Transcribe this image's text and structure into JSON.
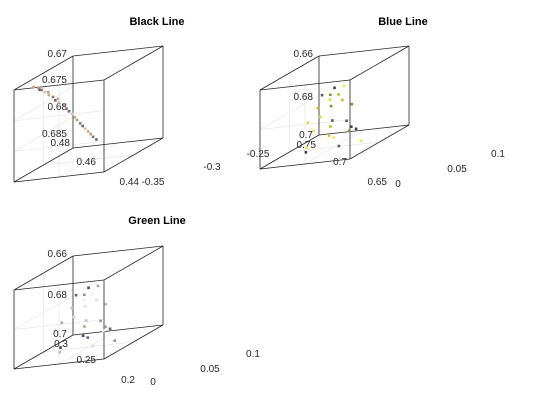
{
  "chart_data": [
    {
      "type": "scatter",
      "title": "Black Line",
      "xlabel": "",
      "ylabel": "",
      "zlabel": "",
      "xlim": [
        -0.35,
        -0.25
      ],
      "ylim": [
        0.44,
        0.48
      ],
      "zlim": [
        0.67,
        0.685
      ],
      "z_direction": "reverse",
      "grid": true,
      "tick_labels": {
        "x": [
          "-0.35",
          "-0.3",
          "-0.25"
        ],
        "y": [
          "0.44",
          "0.46",
          "0.48"
        ],
        "z": [
          "0.67",
          "0.675",
          "0.68",
          "0.685"
        ]
      },
      "marker_colors": [
        "#c9a88a",
        "#b89a82",
        "#8c7a74",
        "#6e6266",
        "#d9bfa5"
      ],
      "series": [
        {
          "name": "",
          "x": [
            -0.338,
            -0.336,
            -0.334,
            -0.333,
            -0.332,
            -0.331,
            -0.33,
            -0.328,
            -0.327,
            -0.325,
            -0.324,
            -0.322,
            -0.321,
            -0.32,
            -0.318,
            -0.317,
            -0.316,
            -0.314,
            -0.313,
            -0.312,
            -0.31,
            -0.309,
            -0.308,
            -0.306
          ],
          "y": [
            0.474,
            0.472,
            0.471,
            0.473,
            0.47,
            0.468,
            0.469,
            0.467,
            0.466,
            0.465,
            0.466,
            0.463,
            0.462,
            0.461,
            0.46,
            0.459,
            0.458,
            0.457,
            0.456,
            0.455,
            0.454,
            0.453,
            0.452,
            0.451
          ],
          "z": [
            0.6705,
            0.671,
            0.6715,
            0.6712,
            0.672,
            0.6728,
            0.6722,
            0.6733,
            0.674,
            0.6745,
            0.6738,
            0.6752,
            0.676,
            0.6766,
            0.6772,
            0.6779,
            0.6785,
            0.6792,
            0.6798,
            0.6804,
            0.681,
            0.6816,
            0.6822,
            0.6828
          ]
        }
      ]
    },
    {
      "type": "scatter",
      "title": "Blue Line",
      "xlabel": "",
      "ylabel": "",
      "zlabel": "",
      "xlim": [
        0,
        0.1
      ],
      "ylim": [
        0.65,
        0.75
      ],
      "zlim": [
        0.66,
        0.7
      ],
      "z_direction": "reverse",
      "grid": true,
      "tick_labels": {
        "x": [
          "0",
          "0.05",
          "0.1"
        ],
        "y": [
          "0.65",
          "0.7",
          "0.75"
        ],
        "z": [
          "0.66",
          "0.68",
          "0.7"
        ]
      },
      "marker_colors": [
        "#f2e84a",
        "#e3d32a",
        "#c9b820",
        "#8f8a2e",
        "#5a5a52",
        "#3e3e44"
      ],
      "series": [
        {
          "name": "",
          "x": [
            0.03,
            0.034,
            0.038,
            0.042,
            0.046,
            0.05,
            0.054,
            0.058,
            0.062,
            0.066,
            0.07,
            0.074,
            0.032,
            0.04,
            0.048,
            0.056,
            0.064,
            0.072,
            0.036,
            0.044,
            0.052,
            0.06,
            0.068,
            0.028,
            0.076
          ],
          "y": [
            0.705,
            0.7,
            0.71,
            0.695,
            0.715,
            0.7,
            0.69,
            0.72,
            0.705,
            0.695,
            0.71,
            0.7,
            0.72,
            0.73,
            0.69,
            0.715,
            0.725,
            0.705,
            0.68,
            0.7,
            0.71,
            0.69,
            0.72,
            0.715,
            0.695
          ],
          "z": [
            0.69,
            0.684,
            0.678,
            0.674,
            0.671,
            0.67,
            0.671,
            0.673,
            0.676,
            0.68,
            0.686,
            0.692,
            0.696,
            0.682,
            0.675,
            0.677,
            0.683,
            0.69,
            0.698,
            0.694,
            0.688,
            0.694,
            0.697,
            0.699,
            0.699
          ]
        }
      ]
    },
    {
      "type": "scatter",
      "title": "Green Line",
      "xlabel": "",
      "ylabel": "",
      "zlabel": "",
      "xlim": [
        0,
        0.1
      ],
      "ylim": [
        0.2,
        0.3
      ],
      "zlim": [
        0.66,
        0.7
      ],
      "z_direction": "reverse",
      "grid": true,
      "tick_labels": {
        "x": [
          "0",
          "0.05",
          "0.1"
        ],
        "y": [
          "0.2",
          "0.25",
          "0.3"
        ],
        "z": [
          "0.66",
          "0.68",
          "0.7"
        ]
      },
      "marker_colors": [
        "#f3eff4",
        "#e2d8e6",
        "#c7b5cc",
        "#9a87a8",
        "#6a5c8a",
        "#4a4a66",
        "#9ab48a"
      ],
      "series": [
        {
          "name": "",
          "x": [
            0.03,
            0.034,
            0.038,
            0.042,
            0.046,
            0.05,
            0.054,
            0.058,
            0.062,
            0.066,
            0.07,
            0.074,
            0.032,
            0.04,
            0.048,
            0.056,
            0.064,
            0.072,
            0.036,
            0.044,
            0.052,
            0.06,
            0.068,
            0.028,
            0.076
          ],
          "y": [
            0.255,
            0.25,
            0.26,
            0.245,
            0.265,
            0.25,
            0.24,
            0.27,
            0.255,
            0.245,
            0.26,
            0.25,
            0.27,
            0.28,
            0.24,
            0.265,
            0.275,
            0.255,
            0.23,
            0.25,
            0.26,
            0.24,
            0.27,
            0.265,
            0.245
          ],
          "z": [
            0.69,
            0.684,
            0.678,
            0.674,
            0.671,
            0.67,
            0.671,
            0.673,
            0.676,
            0.68,
            0.686,
            0.692,
            0.696,
            0.682,
            0.675,
            0.677,
            0.683,
            0.69,
            0.698,
            0.694,
            0.688,
            0.694,
            0.697,
            0.699,
            0.699
          ]
        }
      ]
    }
  ]
}
